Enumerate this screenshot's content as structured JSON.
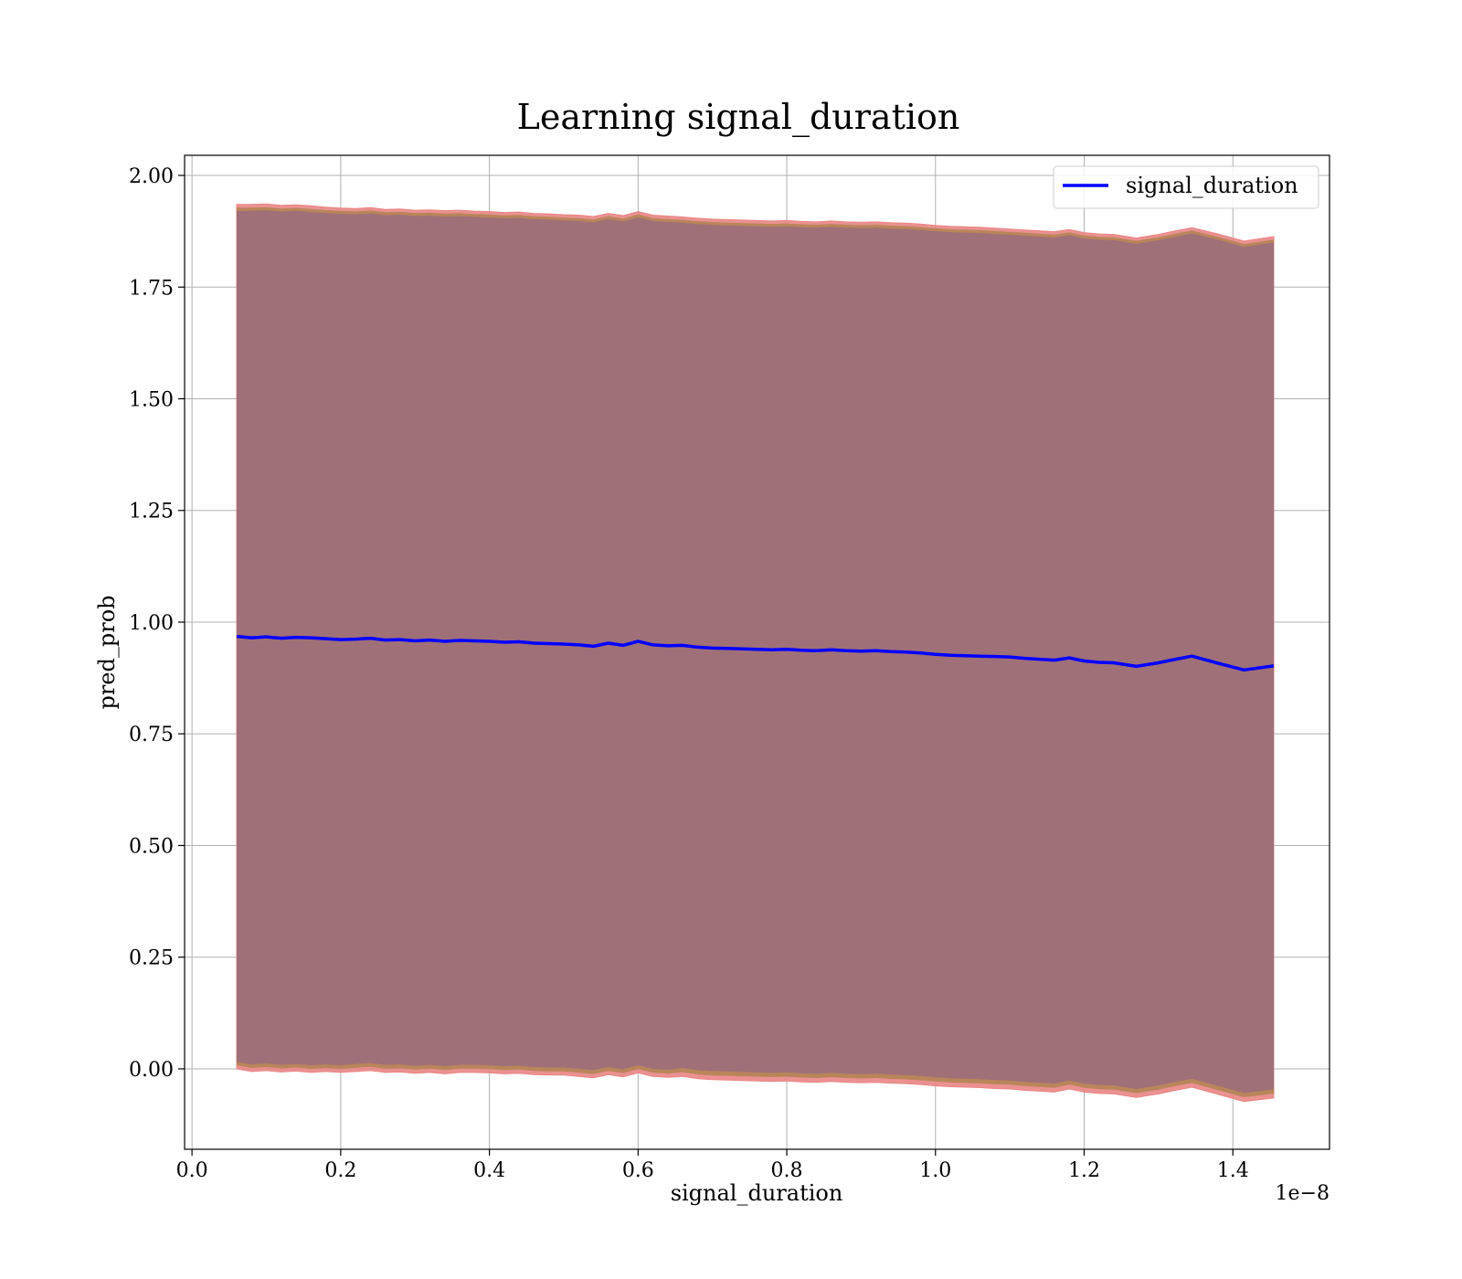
{
  "chart_data": {
    "type": "line",
    "title": "Learning signal_duration",
    "xlabel": "signal_duration",
    "ylabel": "pred_prob",
    "x_offset_label": "1e−8",
    "xlim": [
      -0.01,
      1.53
    ],
    "ylim": [
      -0.18,
      2.045
    ],
    "x_ticks": [
      0.0,
      0.2,
      0.4,
      0.6,
      0.8,
      1.0,
      1.2,
      1.4
    ],
    "x_tick_labels": [
      "0.0",
      "0.2",
      "0.4",
      "0.6",
      "0.8",
      "1.0",
      "1.2",
      "1.4"
    ],
    "y_ticks": [
      0.0,
      0.25,
      0.5,
      0.75,
      1.0,
      1.25,
      1.5,
      1.75,
      2.0
    ],
    "y_tick_labels": [
      "0.00",
      "0.25",
      "0.50",
      "0.75",
      "1.00",
      "1.25",
      "1.50",
      "1.75",
      "2.00"
    ],
    "grid": true,
    "legend_position": "top-right",
    "series": [
      {
        "name": "signal_duration",
        "color": "#0000ff",
        "x": [
          0.06,
          0.08,
          0.1,
          0.12,
          0.14,
          0.16,
          0.18,
          0.2,
          0.22,
          0.24,
          0.26,
          0.28,
          0.3,
          0.32,
          0.34,
          0.36,
          0.38,
          0.4,
          0.42,
          0.44,
          0.46,
          0.48,
          0.5,
          0.52,
          0.54,
          0.56,
          0.58,
          0.6,
          0.62,
          0.64,
          0.66,
          0.68,
          0.7,
          0.72,
          0.74,
          0.76,
          0.78,
          0.8,
          0.82,
          0.84,
          0.86,
          0.88,
          0.9,
          0.92,
          0.94,
          0.96,
          0.98,
          1.0,
          1.02,
          1.04,
          1.06,
          1.08,
          1.1,
          1.12,
          1.14,
          1.16,
          1.18,
          1.2,
          1.22,
          1.24,
          1.27,
          1.3,
          1.32,
          1.345,
          1.38,
          1.415,
          1.455
        ],
        "y": [
          0.968,
          0.965,
          0.967,
          0.964,
          0.966,
          0.965,
          0.963,
          0.961,
          0.962,
          0.964,
          0.96,
          0.961,
          0.958,
          0.96,
          0.957,
          0.959,
          0.958,
          0.957,
          0.955,
          0.956,
          0.953,
          0.952,
          0.951,
          0.949,
          0.946,
          0.953,
          0.948,
          0.957,
          0.949,
          0.947,
          0.948,
          0.944,
          0.942,
          0.941,
          0.94,
          0.939,
          0.938,
          0.939,
          0.937,
          0.936,
          0.938,
          0.936,
          0.935,
          0.936,
          0.934,
          0.933,
          0.931,
          0.928,
          0.926,
          0.925,
          0.924,
          0.923,
          0.922,
          0.919,
          0.917,
          0.915,
          0.92,
          0.913,
          0.91,
          0.909,
          0.901,
          0.909,
          0.916,
          0.924,
          0.908,
          0.893,
          0.902
        ],
        "band_inner_upper": [
          1.92,
          1.921,
          1.922,
          1.919,
          1.921,
          1.918,
          1.916,
          1.914,
          1.913,
          1.915,
          1.911,
          1.912,
          1.909,
          1.91,
          1.908,
          1.909,
          1.907,
          1.906,
          1.904,
          1.905,
          1.902,
          1.901,
          1.899,
          1.898,
          1.895,
          1.902,
          1.897,
          1.906,
          1.898,
          1.896,
          1.894,
          1.891,
          1.889,
          1.888,
          1.887,
          1.886,
          1.885,
          1.886,
          1.884,
          1.883,
          1.885,
          1.883,
          1.882,
          1.883,
          1.881,
          1.88,
          1.878,
          1.875,
          1.873,
          1.872,
          1.871,
          1.869,
          1.867,
          1.865,
          1.863,
          1.861,
          1.866,
          1.859,
          1.856,
          1.855,
          1.847,
          1.855,
          1.862,
          1.87,
          1.856,
          1.84,
          1.85
        ],
        "band_inner_lower": [
          0.016,
          0.01,
          0.012,
          0.009,
          0.011,
          0.008,
          0.01,
          0.008,
          0.011,
          0.013,
          0.009,
          0.01,
          0.007,
          0.009,
          0.006,
          0.009,
          0.009,
          0.008,
          0.006,
          0.007,
          0.004,
          0.003,
          0.003,
          0.0,
          -0.003,
          0.004,
          -0.001,
          0.008,
          0.0,
          -0.002,
          0.002,
          -0.003,
          -0.005,
          -0.006,
          -0.007,
          -0.008,
          -0.009,
          -0.008,
          -0.01,
          -0.011,
          -0.009,
          -0.011,
          -0.012,
          -0.011,
          -0.013,
          -0.014,
          -0.016,
          -0.019,
          -0.021,
          -0.022,
          -0.023,
          -0.025,
          -0.026,
          -0.029,
          -0.031,
          -0.033,
          -0.026,
          -0.033,
          -0.036,
          -0.037,
          -0.045,
          -0.037,
          -0.03,
          -0.022,
          -0.038,
          -0.054,
          -0.046
        ],
        "band_outer_upper": [
          1.935,
          1.935,
          1.936,
          1.933,
          1.934,
          1.932,
          1.929,
          1.927,
          1.926,
          1.928,
          1.924,
          1.925,
          1.922,
          1.923,
          1.921,
          1.922,
          1.92,
          1.919,
          1.917,
          1.918,
          1.915,
          1.914,
          1.912,
          1.911,
          1.908,
          1.915,
          1.91,
          1.919,
          1.911,
          1.909,
          1.907,
          1.904,
          1.902,
          1.901,
          1.9,
          1.899,
          1.898,
          1.899,
          1.897,
          1.896,
          1.898,
          1.896,
          1.895,
          1.896,
          1.894,
          1.893,
          1.891,
          1.888,
          1.886,
          1.885,
          1.884,
          1.882,
          1.88,
          1.878,
          1.876,
          1.874,
          1.879,
          1.872,
          1.869,
          1.868,
          1.86,
          1.868,
          1.875,
          1.883,
          1.869,
          1.853,
          1.863
        ],
        "band_outer_lower": [
          0.0,
          -0.006,
          -0.004,
          -0.007,
          -0.005,
          -0.008,
          -0.006,
          -0.008,
          -0.006,
          -0.004,
          -0.008,
          -0.007,
          -0.01,
          -0.008,
          -0.011,
          -0.008,
          -0.008,
          -0.009,
          -0.011,
          -0.01,
          -0.013,
          -0.014,
          -0.014,
          -0.017,
          -0.02,
          -0.013,
          -0.018,
          -0.009,
          -0.017,
          -0.019,
          -0.017,
          -0.022,
          -0.024,
          -0.025,
          -0.026,
          -0.027,
          -0.028,
          -0.027,
          -0.029,
          -0.03,
          -0.028,
          -0.03,
          -0.031,
          -0.03,
          -0.032,
          -0.033,
          -0.035,
          -0.038,
          -0.04,
          -0.041,
          -0.042,
          -0.044,
          -0.045,
          -0.048,
          -0.05,
          -0.052,
          -0.045,
          -0.052,
          -0.055,
          -0.056,
          -0.064,
          -0.056,
          -0.049,
          -0.041,
          -0.057,
          -0.073,
          -0.065
        ]
      }
    ],
    "colors": {
      "band_outer": "#e98585",
      "band_mid": "#b9855a",
      "band_inner": "#a07078",
      "line": "#0000ff"
    }
  }
}
